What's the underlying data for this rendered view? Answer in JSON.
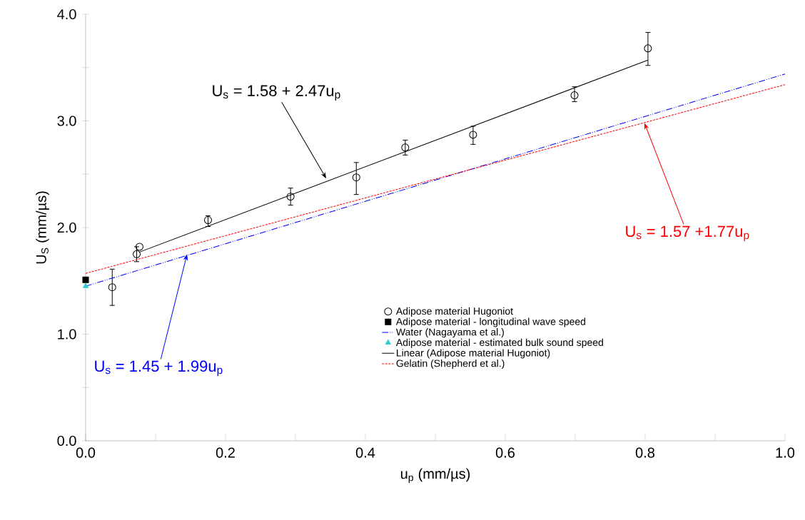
{
  "chart_data": {
    "type": "scatter",
    "xlabel": "u$_{p}$ (mm/µs)",
    "ylabel": "U$_{S}$ (mm/µs)",
    "xlim": [
      0,
      1.0
    ],
    "ylim": [
      0,
      4.0
    ],
    "xticks": [
      {
        "value": 0,
        "label": "0.0"
      },
      {
        "value": 0.1,
        "label": null
      },
      {
        "value": 0.2,
        "label": "0.2"
      },
      {
        "value": 0.3,
        "label": null
      },
      {
        "value": 0.4,
        "label": "0.4"
      },
      {
        "value": 0.5,
        "label": null
      },
      {
        "value": 0.6,
        "label": "0.6"
      },
      {
        "value": 0.7,
        "label": null
      },
      {
        "value": 0.8,
        "label": "0.8"
      },
      {
        "value": 0.9,
        "label": null
      },
      {
        "value": 1.0,
        "label": "1.0"
      }
    ],
    "yticks": [
      {
        "value": 0,
        "label": "0.0"
      },
      {
        "value": 0.5,
        "label": null
      },
      {
        "value": 1.0,
        "label": "1.0"
      },
      {
        "value": 1.5,
        "label": null
      },
      {
        "value": 2.0,
        "label": "2.0"
      },
      {
        "value": 2.5,
        "label": null
      },
      {
        "value": 3.0,
        "label": "3.0"
      },
      {
        "value": 3.5,
        "label": null
      },
      {
        "value": 4.0,
        "label": "4.0"
      }
    ],
    "grid": false,
    "legend": "bottom right",
    "series": [
      {
        "name": "Adipose material Hugoniot",
        "marker": "circle",
        "color": "#000000",
        "x": [
          0.038,
          0.073,
          0.077,
          0.175,
          0.293,
          0.387,
          0.457,
          0.554,
          0.699,
          0.804
        ],
        "values": [
          1.44,
          1.75,
          1.82,
          2.07,
          2.29,
          2.47,
          2.75,
          2.87,
          3.24,
          3.68
        ],
        "errors": [
          [
            1.27,
            1.61
          ],
          [
            1.68,
            1.82
          ],
          null,
          [
            2.01,
            2.11
          ],
          [
            2.21,
            2.37
          ],
          [
            2.31,
            2.61
          ],
          [
            2.68,
            2.82
          ],
          [
            2.78,
            2.95
          ],
          [
            3.18,
            3.32
          ],
          [
            3.52,
            3.83
          ]
        ]
      },
      {
        "name": "Adipose material - longitudinal wave speed",
        "marker": "square",
        "color": "#000000",
        "x": [
          0
        ],
        "values": [
          1.51
        ]
      },
      {
        "name": "Water (Nagayama et al.)",
        "type": "line",
        "line_style": "dashdotdotted",
        "color": "#0000ff",
        "x": [
          0,
          1.0
        ],
        "values": [
          1.45,
          3.44
        ]
      },
      {
        "name": "Adipose material - estimated bulk sound speed",
        "marker": "triangle",
        "color": "#33cccc",
        "x": [
          0
        ],
        "values": [
          1.45
        ]
      },
      {
        "name": "Linear (Adipose material Hugoniot)",
        "type": "line",
        "line_style": "solid",
        "color": "#000000",
        "x": [
          0.077,
          0.804
        ],
        "values": [
          1.77,
          3.57
        ]
      },
      {
        "name": "Gelatin (Shepherd et al.)",
        "type": "line",
        "line_style": "dashed",
        "color": "#ff0000",
        "x": [
          0,
          1.0
        ],
        "values": [
          1.57,
          3.34
        ]
      }
    ],
    "annotations": [
      {
        "text": "U$_{s}$ = 1.58 + 2.47u$_{p}$",
        "x": 0.344,
        "y": 2.46
      },
      {
        "text": "U$_{s}$ = 1.45 + 1.99u$_{p}$",
        "x": 0.145,
        "y": 1.75
      },
      {
        "text": "U$_{s}$ = 1.57 +1.77u$_{p}$",
        "x": 0.799,
        "y": 2.98
      }
    ]
  }
}
